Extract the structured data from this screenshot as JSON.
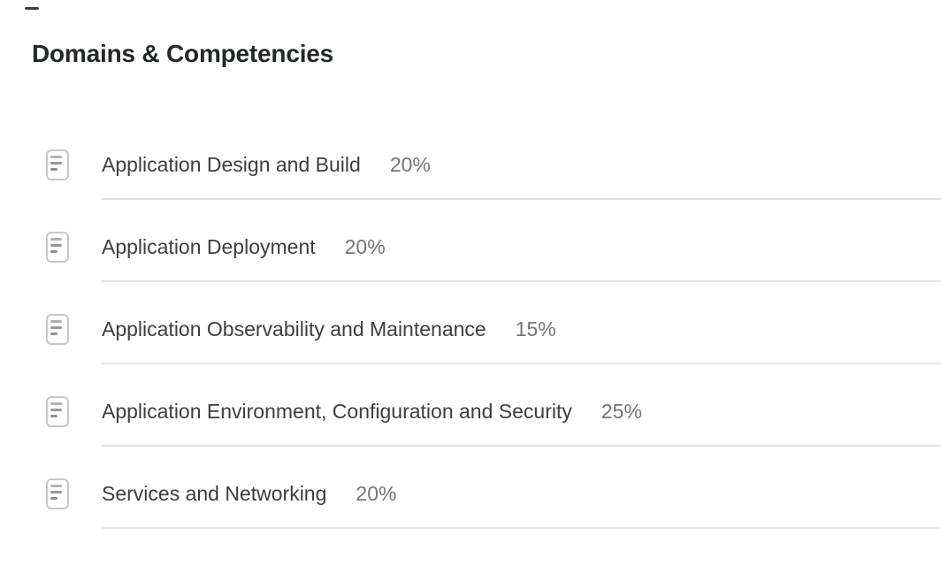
{
  "page": {
    "heading": "Domains & Competencies"
  },
  "domains": {
    "items": [
      {
        "name": "Application Design and Build",
        "weight": "20%"
      },
      {
        "name": "Application Deployment",
        "weight": "20%"
      },
      {
        "name": "Application Observability and Maintenance",
        "weight": "15%"
      },
      {
        "name": "Application Environment, Configuration and Security",
        "weight": "25%"
      },
      {
        "name": "Services and Networking",
        "weight": "20%"
      }
    ]
  },
  "icons": {
    "row_icon": "document-outline-icon"
  },
  "colors": {
    "background": "#ffffff",
    "heading_text": "#24272a",
    "item_text": "#3b3e40",
    "weight_text": "#757575",
    "divider": "#e3e3e3",
    "icon_stroke": "#c8c8c8",
    "icon_lines": "#989898",
    "top_dash": "#3d3d3d"
  }
}
